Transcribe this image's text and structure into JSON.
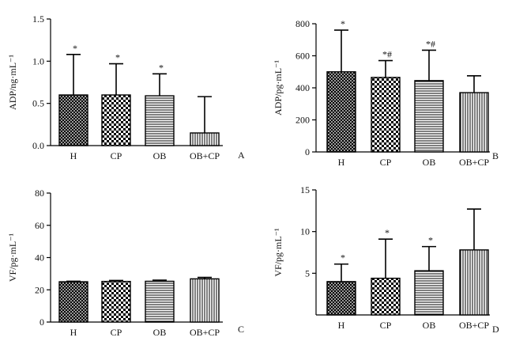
{
  "chart_data": [
    {
      "type": "bar",
      "panel_label": "A",
      "ylabel": "ADP/ng·mL⁻¹",
      "ylim": [
        0,
        1.5
      ],
      "yticks": [
        "0.0",
        "0.5",
        "1.0",
        "1.5"
      ],
      "ytick_values": [
        0,
        0.5,
        1.0,
        1.5
      ],
      "categories": [
        "H",
        "CP",
        "OB",
        "OB+CP"
      ],
      "values": [
        0.6,
        0.6,
        0.59,
        0.15
      ],
      "errors": [
        0.48,
        0.37,
        0.26,
        0.43
      ],
      "annotations": [
        "*",
        "*",
        "*",
        ""
      ]
    },
    {
      "type": "bar",
      "panel_label": "B",
      "ylabel": "ADP/pg·mL⁻¹",
      "ylim": [
        0,
        800
      ],
      "yticks": [
        "0",
        "200",
        "400",
        "600",
        "800"
      ],
      "ytick_values": [
        0,
        200,
        400,
        600,
        800
      ],
      "categories": [
        "H",
        "CP",
        "OB",
        "OB+CP"
      ],
      "values": [
        500,
        465,
        445,
        370
      ],
      "errors": [
        260,
        105,
        190,
        105
      ],
      "annotations": [
        "*",
        "*#",
        "*#",
        ""
      ]
    },
    {
      "type": "bar",
      "panel_label": "C",
      "ylabel": "VF/pg·mL⁻¹",
      "ylim": [
        0,
        80
      ],
      "yticks": [
        "0",
        "20",
        "40",
        "60",
        "80"
      ],
      "ytick_values": [
        0,
        20,
        40,
        60,
        80
      ],
      "categories": [
        "H",
        "CP",
        "OB",
        "OB+CP"
      ],
      "values": [
        25,
        25.2,
        25.3,
        26.8
      ],
      "errors": [
        0.3,
        0.6,
        0.7,
        0.9
      ],
      "annotations": [
        "",
        "",
        "",
        ""
      ]
    },
    {
      "type": "bar",
      "panel_label": "D",
      "ylabel": "VF/pg·mL⁻¹",
      "ylim": [
        0,
        15
      ],
      "yticks": [
        "5",
        "10",
        "15"
      ],
      "ytick_values": [
        5,
        10,
        15
      ],
      "categories": [
        "H",
        "CP",
        "OB",
        "OB+CP"
      ],
      "values": [
        4.0,
        4.4,
        5.3,
        7.8
      ],
      "errors": [
        2.1,
        4.7,
        2.9,
        4.9
      ],
      "annotations": [
        "*",
        "*",
        "*",
        ""
      ]
    }
  ]
}
